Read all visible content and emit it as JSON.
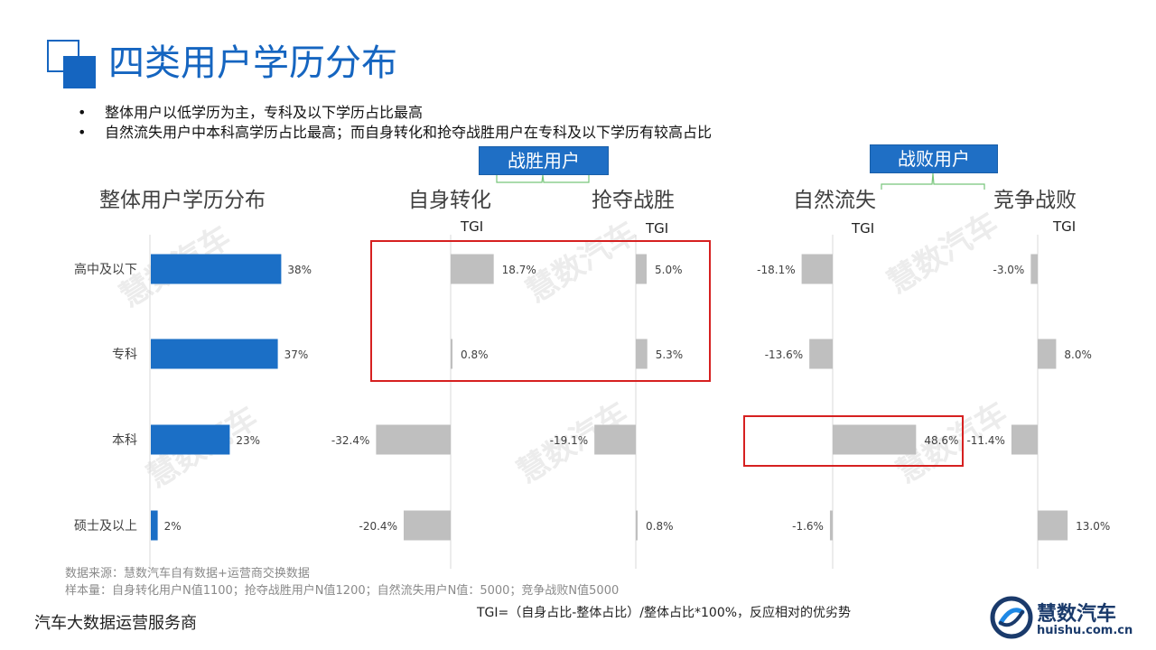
{
  "page_title": "四类用户学历分布",
  "bullets": [
    "整体用户以低学历为主，专科及以下学历占比最高",
    "自然流失用户中本科高学历占比最高；而自身转化和抢夺战胜用户在专科及以下学历有较高占比"
  ],
  "groups": {
    "win": "战胜用户",
    "lose": "战败用户"
  },
  "watermark": "慧数汽车",
  "source_lines": [
    "数据来源：慧数汽车自有数据+运营商交换数据",
    "样本量：自身转化用户N值1100；抢夺战胜用户N值1200；自然流失用户N值：5000；竞争战败N值5000"
  ],
  "company": "汽车大数据运营服务商",
  "formula": "TGI=（自身占比-整体占比）/整体占比*100%，反应相对的优劣势",
  "logo": {
    "name": "慧数汽车",
    "url": "huishu.com.cn",
    "icon": "huishu-logo-icon"
  },
  "colors": {
    "primary": "#1565c0",
    "bar_blue": "#1b6fc6",
    "bar_gray": "#bfbfbf",
    "highlight": "#d62020"
  },
  "chart_data": [
    {
      "type": "bar",
      "orientation": "horizontal",
      "title": "整体用户学历分布",
      "categories": [
        "高中及以下",
        "专科",
        "本科",
        "硕士及以上"
      ],
      "values": [
        38,
        37,
        23,
        2
      ],
      "labels": [
        "38%",
        "37%",
        "23%",
        "2%"
      ],
      "unit": "%"
    },
    {
      "type": "bar",
      "orientation": "horizontal",
      "title": "自身转化",
      "axis_label": "TGI",
      "categories": [
        "高中及以下",
        "专科",
        "本科",
        "硕士及以上"
      ],
      "values": [
        18.7,
        0.8,
        -32.4,
        -20.4
      ],
      "labels": [
        "18.7%",
        "0.8%",
        "-32.4%",
        "-20.4%"
      ]
    },
    {
      "type": "bar",
      "orientation": "horizontal",
      "title": "抢夺战胜",
      "axis_label": "TGI",
      "categories": [
        "高中及以下",
        "专科",
        "本科",
        "硕士及以上"
      ],
      "values": [
        5.0,
        5.3,
        -19.1,
        0.8
      ],
      "labels": [
        "5.0%",
        "5.3%",
        "-19.1%",
        "0.8%"
      ]
    },
    {
      "type": "bar",
      "orientation": "horizontal",
      "title": "自然流失",
      "axis_label": "TGI",
      "categories": [
        "高中及以下",
        "专科",
        "本科",
        "硕士及以上"
      ],
      "values": [
        -18.1,
        -13.6,
        48.6,
        -1.6
      ],
      "labels": [
        "-18.1%",
        "-13.6%",
        "48.6%",
        "-1.6%"
      ]
    },
    {
      "type": "bar",
      "orientation": "horizontal",
      "title": "竞争战败",
      "axis_label": "TGI",
      "categories": [
        "高中及以下",
        "专科",
        "本科",
        "硕士及以上"
      ],
      "values": [
        -3.0,
        8.0,
        -11.4,
        13.0
      ],
      "labels": [
        "-3.0%",
        "8.0%",
        "-11.4%",
        "13.0%"
      ]
    }
  ]
}
